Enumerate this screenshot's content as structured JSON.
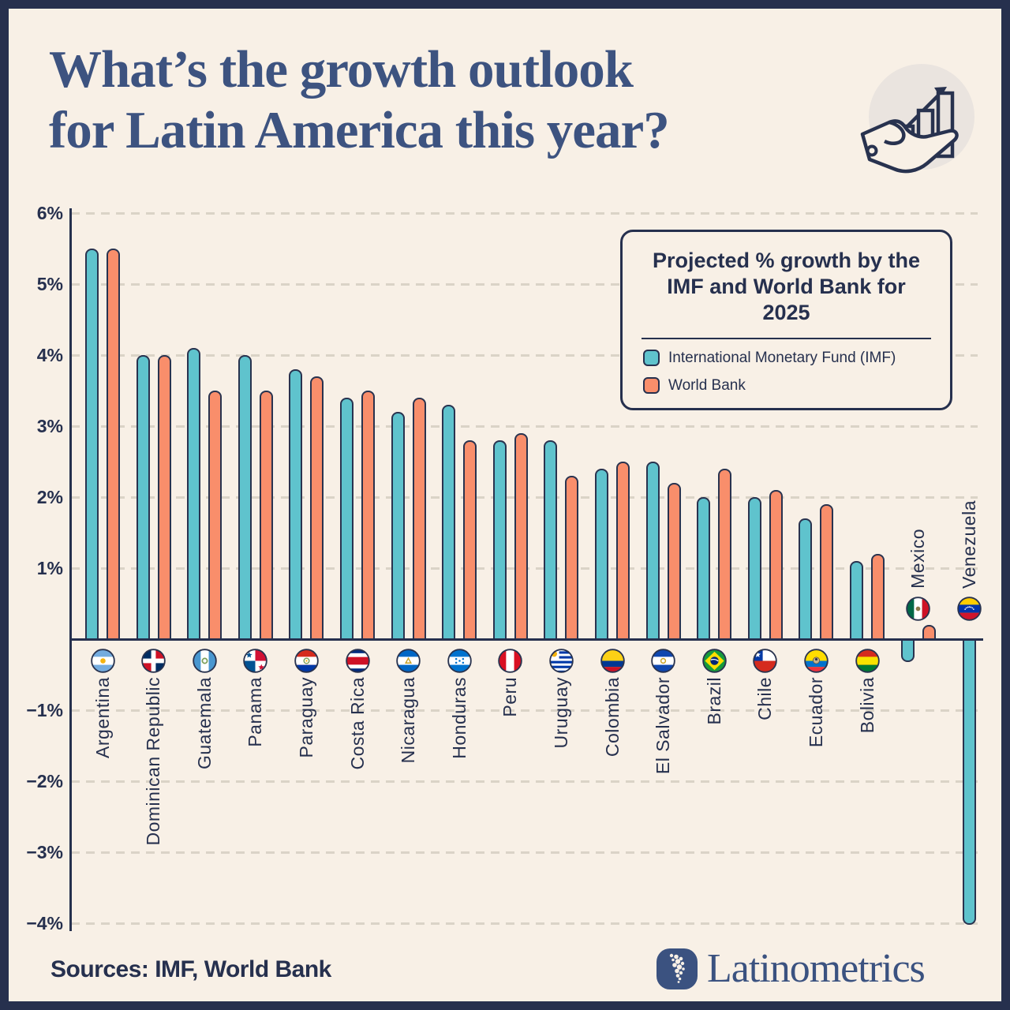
{
  "header": {
    "title_line1": "What’s the growth outlook",
    "title_line2": "for Latin America this year?",
    "icon": "hand-holding-growth-chart-icon"
  },
  "legend": {
    "title": "Projected % growth by the IMF and World Bank for 2025",
    "entries": [
      {
        "label": "International Monetary Fund (IMF)",
        "color": "#5FC3CD"
      },
      {
        "label": "World Bank",
        "color": "#F98E6B"
      }
    ]
  },
  "chart_data": {
    "type": "bar",
    "title": "Projected % growth by the IMF and World Bank for 2025",
    "categories": [
      "Argentina",
      "Dominican Republic",
      "Guatemala",
      "Panama",
      "Paraguay",
      "Costa Rica",
      "Nicaragua",
      "Honduras",
      "Peru",
      "Uruguay",
      "Colombia",
      "El Salvador",
      "Brazil",
      "Chile",
      "Ecuador",
      "Bolivia",
      "Mexico",
      "Venezuela"
    ],
    "series": [
      {
        "name": "International Monetary Fund (IMF)",
        "color": "#5FC3CD",
        "values": [
          5.5,
          4.0,
          4.1,
          4.0,
          3.8,
          3.4,
          3.2,
          3.3,
          2.8,
          2.8,
          2.4,
          2.5,
          2.0,
          2.0,
          1.7,
          1.1,
          -0.3,
          -4.0
        ]
      },
      {
        "name": "World Bank",
        "color": "#F98E6B",
        "values": [
          5.5,
          4.0,
          3.5,
          3.5,
          3.7,
          3.5,
          3.4,
          2.8,
          2.9,
          2.3,
          2.5,
          2.2,
          2.4,
          2.1,
          1.9,
          1.2,
          0.2,
          null
        ]
      }
    ],
    "xlabel": "",
    "ylabel": "",
    "ylim": [
      -4,
      6
    ],
    "yticks": [
      6,
      5,
      4,
      3,
      2,
      1,
      -1,
      -2,
      -3,
      -4
    ],
    "ytick_labels": [
      "6%",
      "5%",
      "4%",
      "3%",
      "2%",
      "1%",
      "−1%",
      "−2%",
      "−3%",
      "−4%"
    ],
    "grid": "dashed horizontal",
    "legend_position": "upper right",
    "flag_icons": [
      "argentina-flag-icon",
      "dominican-republic-flag-icon",
      "guatemala-flag-icon",
      "panama-flag-icon",
      "paraguay-flag-icon",
      "costa-rica-flag-icon",
      "nicaragua-flag-icon",
      "honduras-flag-icon",
      "peru-flag-icon",
      "uruguay-flag-icon",
      "colombia-flag-icon",
      "el-salvador-flag-icon",
      "brazil-flag-icon",
      "chile-flag-icon",
      "ecuador-flag-icon",
      "bolivia-flag-icon",
      "mexico-flag-icon",
      "venezuela-flag-icon"
    ]
  },
  "footer": {
    "sources": "Sources: IMF, World Bank",
    "brand": "Latinometrics"
  },
  "colors": {
    "background": "#F8F0E6",
    "frame": "#26304E",
    "accent_teal": "#5FC3CD",
    "accent_orange": "#F98E6B",
    "navy_text": "#26304E",
    "title_blue": "#3D5380",
    "gridline": "#DAD3C7",
    "icon_circle": "#EAE4DF"
  }
}
